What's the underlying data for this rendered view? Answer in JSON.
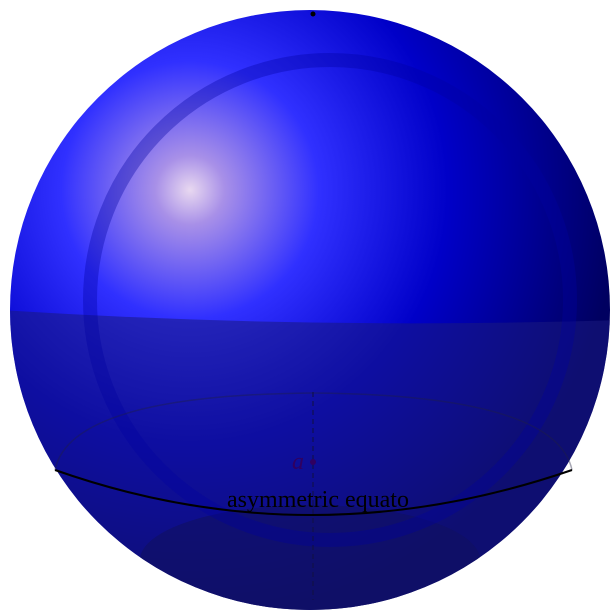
{
  "labels": {
    "point": "a",
    "equator": "asymmetric equato"
  }
}
